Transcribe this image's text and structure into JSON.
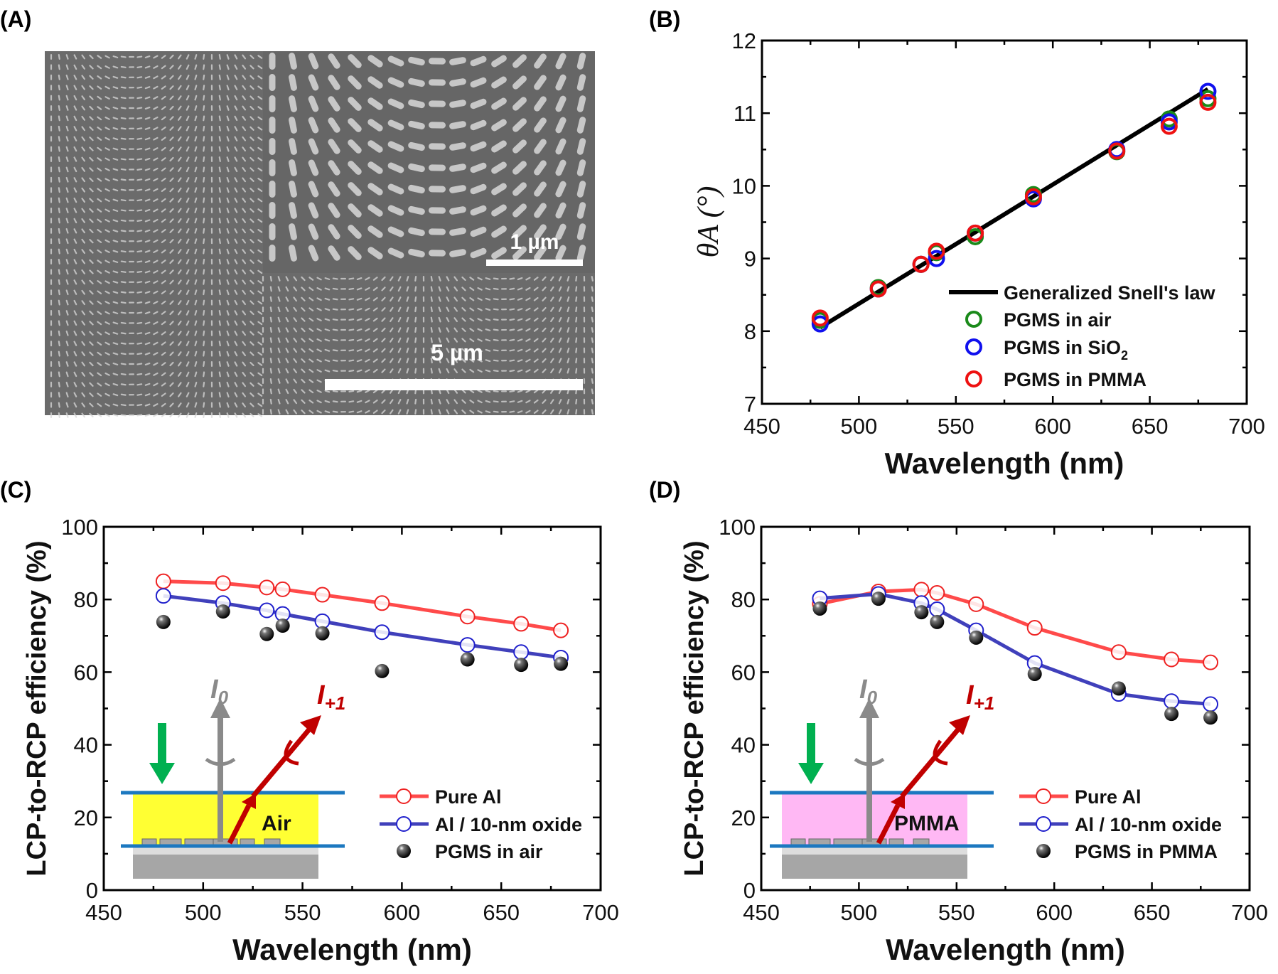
{
  "panels": {
    "a": "(A)",
    "b": "(B)",
    "c": "(C)",
    "d": "(D)"
  },
  "sem": {
    "inset_scale": "1 µm",
    "main_scale": "5 µm"
  },
  "colors": {
    "green": "#1a8a1a",
    "blue": "#1010ee",
    "red": "#ee1111",
    "pure_al": "#ff4a4a",
    "oxide": "#4040bb",
    "air_fill": "#ffff33",
    "pmma_fill": "#ffb8f4",
    "interface": "#1c78c0",
    "arrow_red": "#c00000",
    "arrow_gray": "#8a8a8a",
    "arrow_green": "#00b050"
  },
  "chart_data": [
    {
      "type": "scatter",
      "panel": "B",
      "xlabel": "Wavelength (nm)",
      "ylabel": "θA (°)",
      "xlim": [
        450,
        700
      ],
      "ylim": [
        7,
        12
      ],
      "xticks": [
        450,
        500,
        550,
        600,
        650,
        700
      ],
      "yticks": [
        7,
        8,
        9,
        10,
        11,
        12
      ],
      "legend_position": "bottom-right",
      "x": [
        480,
        510,
        532,
        540,
        560,
        590,
        633,
        660,
        680
      ],
      "line": {
        "name": "Generalized Snell's law",
        "x": [
          480,
          680
        ],
        "y": [
          8.05,
          11.33
        ]
      },
      "series": [
        {
          "name": "PGMS in air",
          "color": "#1a8a1a",
          "values": [
            8.15,
            8.6,
            8.92,
            9.08,
            9.3,
            9.88,
            10.47,
            10.92,
            11.2
          ]
        },
        {
          "name": "PGMS in SiO2",
          "color": "#1010ee",
          "values": [
            8.1,
            8.58,
            8.92,
            9.0,
            9.35,
            9.82,
            10.5,
            10.88,
            11.3
          ]
        },
        {
          "name": "PGMS in PMMA",
          "color": "#ee1111",
          "values": [
            8.18,
            8.58,
            8.92,
            9.1,
            9.35,
            9.85,
            10.48,
            10.82,
            11.15
          ]
        }
      ]
    },
    {
      "type": "line",
      "panel": "C",
      "xlabel": "Wavelength (nm)",
      "ylabel": "LCP-to-RCP efficiency (%)",
      "xlim": [
        450,
        700
      ],
      "ylim": [
        0,
        100
      ],
      "xticks": [
        450,
        500,
        550,
        600,
        650,
        700
      ],
      "yticks": [
        0,
        20,
        40,
        60,
        80,
        100
      ],
      "legend_position": "bottom-right",
      "x": [
        480,
        510,
        532,
        540,
        560,
        590,
        633,
        660,
        680
      ],
      "series": [
        {
          "name": "Pure Al",
          "style": "line-open-circle",
          "color": "#ff4a4a",
          "values": [
            85,
            84.5,
            83.3,
            82.8,
            81.3,
            79,
            75.3,
            73.3,
            71.5
          ]
        },
        {
          "name": "Al / 10-nm oxide",
          "style": "line-open-circle",
          "color": "#4040bb",
          "values": [
            81,
            79,
            77,
            76,
            74,
            71,
            67.5,
            65.5,
            64
          ]
        },
        {
          "name": "PGMS in air",
          "style": "filled-sphere",
          "color": "#000000",
          "values": [
            73.8,
            76.7,
            70.5,
            72.8,
            70.7,
            60.3,
            63.5,
            62,
            62.3
          ]
        }
      ],
      "inset": {
        "medium": "Air",
        "i0": "I",
        "i0_sub": "0",
        "i1": "I",
        "i1_sub": "+1",
        "fill": "#ffff33"
      }
    },
    {
      "type": "line",
      "panel": "D",
      "xlabel": "Wavelength (nm)",
      "ylabel": "LCP-to-RCP efficiency (%)",
      "xlim": [
        450,
        700
      ],
      "ylim": [
        0,
        100
      ],
      "xticks": [
        450,
        500,
        550,
        600,
        650,
        700
      ],
      "yticks": [
        0,
        20,
        40,
        60,
        80,
        100
      ],
      "legend_position": "bottom-right",
      "x": [
        480,
        510,
        532,
        540,
        560,
        590,
        633,
        660,
        680
      ],
      "series": [
        {
          "name": "Pure Al",
          "style": "line-open-circle",
          "color": "#ff4a4a",
          "values": [
            78.8,
            82.2,
            82.7,
            81.8,
            78.7,
            72.2,
            65.5,
            63.5,
            62.7
          ]
        },
        {
          "name": "Al / 10-nm oxide",
          "style": "line-open-circle",
          "color": "#4040bb",
          "values": [
            80.3,
            81.5,
            79,
            77.3,
            71.5,
            62.5,
            54,
            52,
            51.2
          ]
        },
        {
          "name": "PGMS in PMMA",
          "style": "filled-sphere",
          "color": "#000000",
          "values": [
            77.5,
            80.2,
            76.5,
            73.8,
            69.5,
            59.5,
            55.5,
            48.5,
            47.5
          ]
        }
      ],
      "inset": {
        "medium": "PMMA",
        "i0": "I",
        "i0_sub": "0",
        "i1": "I",
        "i1_sub": "+1",
        "fill": "#ffb8f4"
      }
    }
  ]
}
